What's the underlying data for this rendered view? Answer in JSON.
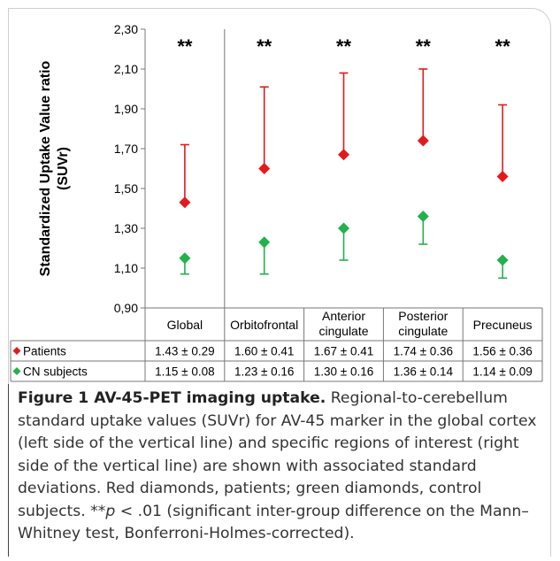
{
  "chart_data": {
    "type": "scatter",
    "ylabel_line1": "Standardized Uptake Value ratio",
    "ylabel_line2": "(SUVr)",
    "ylim": [
      0.9,
      2.3
    ],
    "yticks": [
      "0,90",
      "1,10",
      "1,30",
      "1,50",
      "1,70",
      "1,90",
      "2,10",
      "2,30"
    ],
    "categories": [
      "Global",
      "Orbitofrontal",
      "Anterior cingulate",
      "Posterior cingulate",
      "Precuneus"
    ],
    "category_lines": [
      [
        "Global"
      ],
      [
        "Orbitofrontal"
      ],
      [
        "Anterior",
        "cingulate"
      ],
      [
        "Posterior",
        "cingulate"
      ],
      [
        "Precuneus"
      ]
    ],
    "significance": [
      "**",
      "**",
      "**",
      "**",
      "**"
    ],
    "series": [
      {
        "name": "Patients",
        "color": "#e31a1c",
        "marker": "diamond",
        "error_direction": "up",
        "values": [
          1.43,
          1.6,
          1.67,
          1.74,
          1.56
        ],
        "sd": [
          0.29,
          0.41,
          0.41,
          0.36,
          0.36
        ],
        "table_values": [
          "1.43 ± 0.29",
          "1.60 ± 0.41",
          "1.67 ± 0.41",
          "1.74 ± 0.36",
          "1.56 ± 0.36"
        ]
      },
      {
        "name": "CN subjects",
        "color": "#22b14c",
        "marker": "diamond",
        "error_direction": "down",
        "values": [
          1.15,
          1.23,
          1.3,
          1.36,
          1.14
        ],
        "sd": [
          0.08,
          0.16,
          0.16,
          0.14,
          0.09
        ],
        "table_values": [
          "1.15 ± 0.08",
          "1.23 ± 0.16",
          "1.30 ± 0.16",
          "1.36 ± 0.14",
          "1.14 ± 0.09"
        ]
      }
    ],
    "grid": false,
    "legend": "table-below"
  },
  "caption": {
    "title": "Figure 1 AV-45-PET imaging uptake.",
    "body_1": " Regional-to-cerebellum standard uptake values (SUVr) for AV-45 marker in the global cortex (left side of the vertical line) and specific regions of interest (right side of the vertical line) are shown with associated standard deviations. Red diamonds, patients; green diamonds, control subjects. **",
    "p_symbol": "p",
    "body_2": " < .01 (significant inter-group difference on the Mann–Whitney test, Bonferroni-Holmes-corrected)."
  }
}
